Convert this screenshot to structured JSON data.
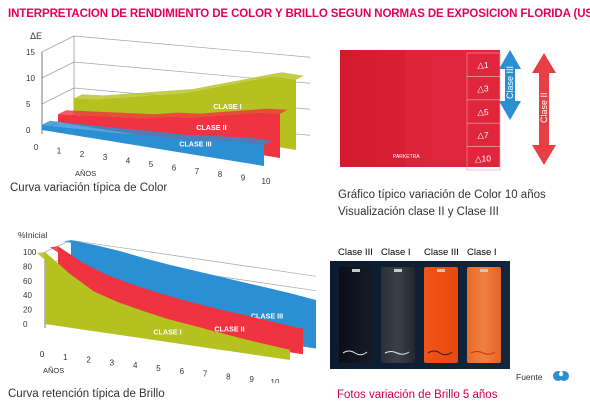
{
  "title": "INTERPRETACION DE RENDIMIENTO DE COLOR Y BRILLO SEGUN NORMAS DE EXPOSICION FLORIDA (USA)",
  "colors": {
    "title": "#e5005a",
    "clase_i": "#b5c11e",
    "clase_ii": "#ef3340",
    "clase_iii": "#2b8fd3",
    "swatch": "#d71c30",
    "arrow_blue": "#2b8fd3",
    "arrow_red": "#e83e45"
  },
  "chart_data": [
    {
      "type": "area",
      "caption": "Curva variación típica de Color",
      "ylabel": "ΔE",
      "xlabel": "AÑOS",
      "x": [
        0,
        1,
        2,
        3,
        4,
        5,
        6,
        7,
        8,
        9,
        10
      ],
      "ylim": [
        0,
        15
      ],
      "yticks": [
        "0",
        "5",
        "10",
        "15"
      ],
      "grid": true,
      "series": [
        {
          "name": "CLASE I",
          "values": [
            3,
            3.5,
            4.5,
            5.5,
            6.5,
            7.5,
            9,
            10.5,
            12,
            13.5,
            13.5
          ]
        },
        {
          "name": "CLASE II",
          "values": [
            1.5,
            2,
            2.5,
            3,
            3.5,
            4.5,
            5,
            6,
            7,
            8,
            8.5
          ]
        },
        {
          "name": "CLASE III",
          "values": [
            1,
            1.2,
            1.5,
            1.7,
            2,
            2.3,
            2.5,
            3,
            3.5,
            4,
            4
          ]
        }
      ]
    },
    {
      "type": "area",
      "caption": "Curva retención típica de Brillo",
      "ylabel": "%Inicial",
      "xlabel": "AÑOS",
      "x": [
        0,
        1,
        2,
        3,
        4,
        5,
        6,
        7,
        8,
        9,
        10
      ],
      "ylim": [
        0,
        100
      ],
      "yticks": [
        "0",
        "20",
        "40",
        "60",
        "80",
        "100"
      ],
      "grid": true,
      "series": [
        {
          "name": "CLASE III",
          "values": [
            100,
            98,
            95,
            90,
            86,
            83,
            80,
            77,
            74,
            71,
            67
          ]
        },
        {
          "name": "CLASE II",
          "values": [
            100,
            82,
            70,
            62,
            56,
            51,
            47,
            44,
            41,
            38,
            35
          ]
        },
        {
          "name": "CLASE I",
          "values": [
            100,
            75,
            55,
            45,
            38,
            32,
            28,
            24,
            20,
            17,
            14
          ]
        }
      ]
    }
  ],
  "color_scale": {
    "caption_line1": "Gráfico típico variación de Color 10 años",
    "caption_line2": "Visualización clase II y Clase III",
    "steps": [
      "△1",
      "△3",
      "△5",
      "△7",
      "△10"
    ],
    "brand": "PARKETRA",
    "arrow_blue_label": "Clase III",
    "arrow_red_label": "Clase II"
  },
  "photos": {
    "caption": "Fotos  variación de Brillo  5 años",
    "labels": [
      "Clase III",
      "Clase I",
      "Clase III",
      "Clase I"
    ],
    "source": "Fuente"
  }
}
